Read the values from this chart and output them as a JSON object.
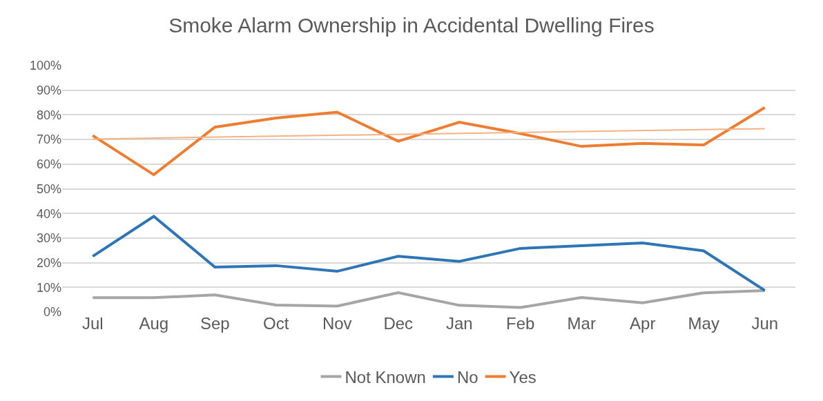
{
  "chart_data": {
    "type": "line",
    "title": "Smoke Alarm Ownership in Accidental Dwelling Fires",
    "categories": [
      "Jul",
      "Aug",
      "Sep",
      "Oct",
      "Nov",
      "Dec",
      "Jan",
      "Feb",
      "Mar",
      "Apr",
      "May",
      "Jun"
    ],
    "series": [
      {
        "name": "Not Known",
        "color": "#a5a5a5",
        "values": [
          5.8,
          5.8,
          6.9,
          2.8,
          2.4,
          7.8,
          2.7,
          1.8,
          5.9,
          3.7,
          7.8,
          8.7
        ]
      },
      {
        "name": "No",
        "color": "#2e75b6",
        "values": [
          22.6,
          38.8,
          18.2,
          18.8,
          16.5,
          22.6,
          20.5,
          25.8,
          26.9,
          28.0,
          24.8,
          8.7
        ]
      },
      {
        "name": "Yes",
        "color": "#ed7d31",
        "values": [
          71.6,
          55.7,
          75.0,
          78.7,
          81.1,
          69.3,
          77.0,
          72.4,
          67.2,
          68.4,
          67.8,
          83.0
        ]
      },
      {
        "type": "line",
        "color": "#f4b183",
        "x": [
          "Jul",
          "Jun"
        ],
        "values": [
          70.2,
          74.4
        ]
      }
    ],
    "ylim": [
      0,
      100
    ],
    "yticks": [
      {
        "value": 0,
        "label": "0%"
      },
      {
        "value": 10,
        "label": "10%"
      },
      {
        "value": 20,
        "label": "20%"
      },
      {
        "value": 30,
        "label": "30%"
      },
      {
        "value": 40,
        "label": "40%"
      },
      {
        "value": 50,
        "label": "50%"
      },
      {
        "value": 60,
        "label": "60%"
      },
      {
        "value": 70,
        "label": "70%"
      },
      {
        "value": 80,
        "label": "80%"
      },
      {
        "value": 90,
        "label": "90%"
      },
      {
        "value": 100,
        "label": "100%"
      }
    ],
    "grid": "y",
    "legend": "bottom",
    "marker": "none",
    "line_style": "solid"
  }
}
